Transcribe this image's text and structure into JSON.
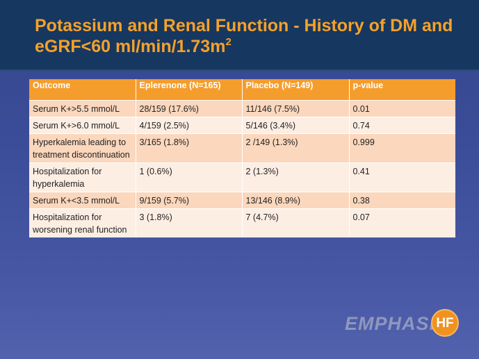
{
  "slide": {
    "title_main": "Potassium and Renal Function - History of DM and eGRF<60 ml/min/1.73m",
    "title_sup": "2"
  },
  "table": {
    "headers": [
      "Outcome",
      "Eplerenone (N=165)",
      "Placebo (N=149)",
      "p-value"
    ],
    "rows": [
      [
        "Serum K+>5.5 mmol/L",
        "28/159 (17.6%)",
        "11/146 (7.5%)",
        "0.01"
      ],
      [
        "Serum K+>6.0 mmol/L",
        "4/159 (2.5%)",
        "5/146 (3.4%)",
        "0.74"
      ],
      [
        "Hyperkalemia leading to treatment discontinuation",
        "3/165 (1.8%)",
        "2 /149 (1.3%)",
        "0.999"
      ],
      [
        "Hospitalization for hyperkalemia",
        "1 (0.6%)",
        "2 (1.3%)",
        "0.41"
      ],
      [
        "Serum K+<3.5 mmol/L",
        "9/159 (5.7%)",
        "13/146 (8.9%)",
        "0.38"
      ],
      [
        "Hospitalization for worsening renal function",
        "3 (1.8%)",
        "7 (4.7%)",
        "0.07"
      ]
    ]
  },
  "logo": {
    "text": "EMPHASIS",
    "badge": "HF"
  },
  "colors": {
    "title": "#f5a12a",
    "header_bg": "#f59d2c",
    "row_odd": "#fbd7bd",
    "row_even": "#fdeee4",
    "band": "#16375f"
  }
}
